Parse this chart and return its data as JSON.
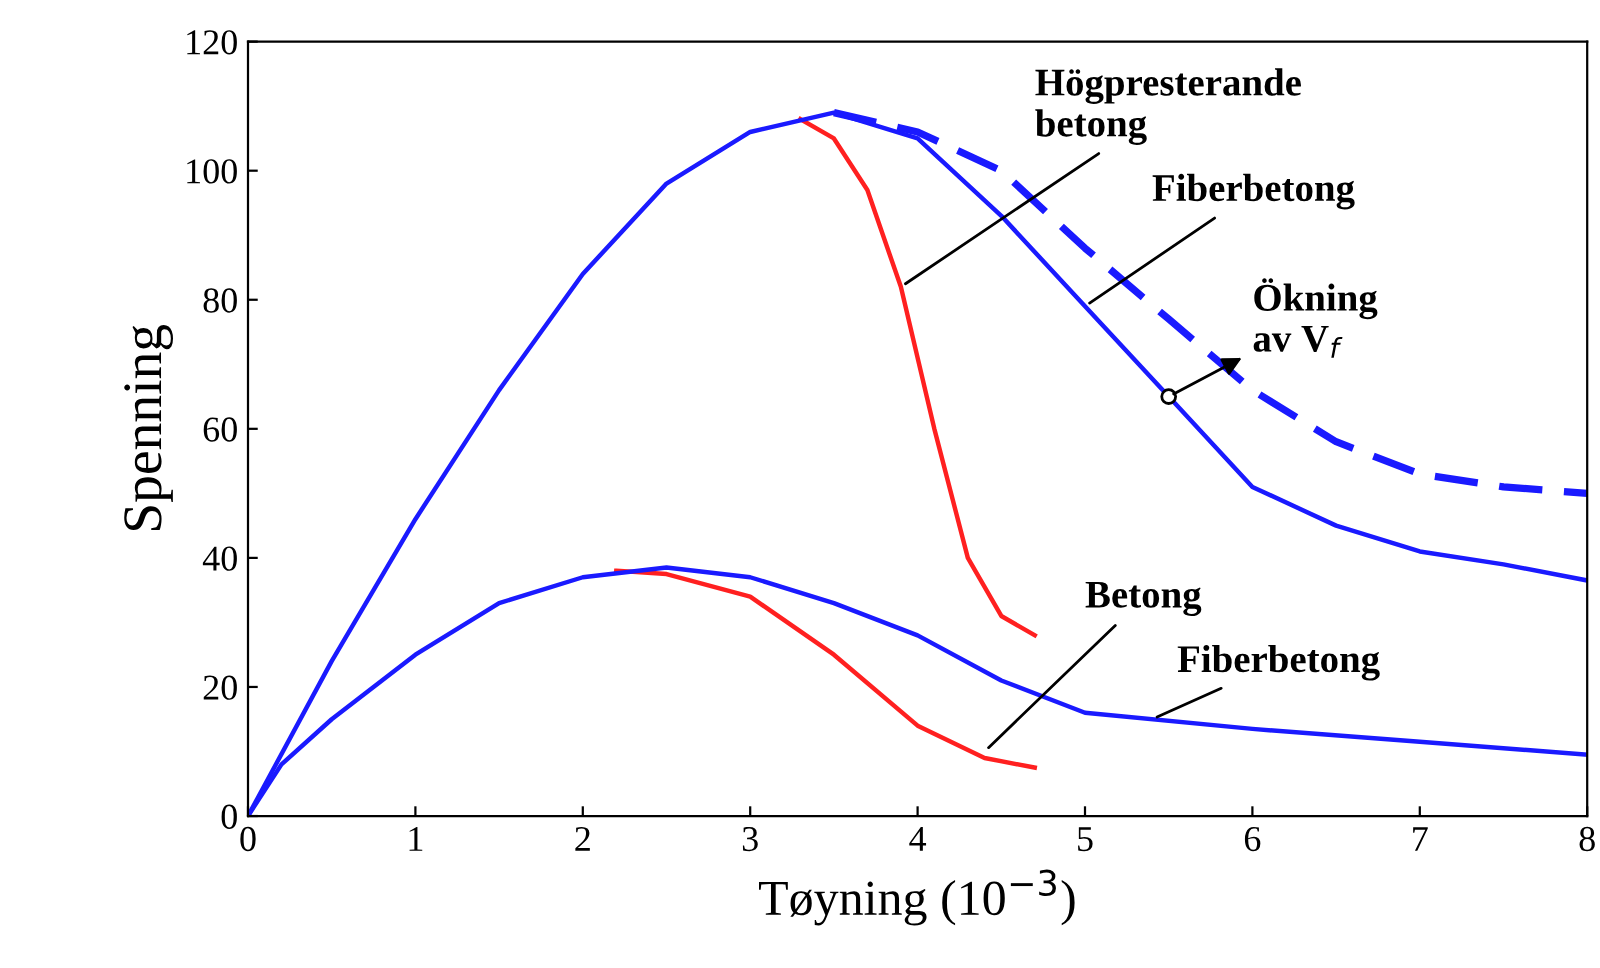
{
  "chart_data": {
    "type": "line",
    "xlabel": "Tøyning (10$^{−3}$)",
    "ylabel": "Spenning",
    "xlim": [
      0,
      8
    ],
    "ylim": [
      0,
      120
    ],
    "xticks": [
      0,
      1,
      2,
      3,
      4,
      5,
      6,
      7,
      8
    ],
    "yticks": [
      0,
      20,
      40,
      60,
      80,
      100,
      120
    ],
    "grid": false,
    "legend": false,
    "marker": "none",
    "series": [
      {
        "color": "#ff2020",
        "line_style": "solid",
        "x": [
          3.3,
          3.5,
          3.7,
          3.9,
          4.1,
          4.3,
          4.5,
          4.7
        ],
        "values": [
          108,
          105,
          97,
          82,
          60,
          40,
          31,
          28
        ]
      },
      {
        "color": "#1a1aff",
        "line_style": "solid",
        "x": [
          0,
          0.5,
          1,
          1.5,
          2,
          2.5,
          3,
          3.5,
          4,
          4.5,
          5,
          5.5,
          6,
          6.5,
          7,
          7.5,
          8
        ],
        "values": [
          0,
          24,
          46,
          66,
          84,
          98,
          106,
          109,
          105,
          93,
          79,
          65,
          51,
          45,
          41,
          39,
          36.5
        ]
      },
      {
        "color": "#1a1aff",
        "line_style": "dashed",
        "x": [
          3.5,
          4,
          4.5,
          5,
          5.5,
          6,
          6.5,
          7,
          7.5,
          8
        ],
        "values": [
          109,
          106,
          100,
          88,
          77,
          66,
          58,
          53,
          51,
          50
        ]
      },
      {
        "color": "#ff2020",
        "line_style": "solid",
        "x": [
          2.2,
          2.5,
          3,
          3.5,
          4,
          4.4,
          4.7
        ],
        "values": [
          38,
          37.5,
          34,
          25,
          14,
          9,
          7.5
        ]
      },
      {
        "color": "#1a1aff",
        "line_style": "solid",
        "x": [
          0,
          0.2,
          0.5,
          1,
          1.5,
          2,
          2.5,
          3,
          3.5,
          4,
          4.5,
          5,
          6,
          7,
          8
        ],
        "values": [
          0,
          8,
          15,
          25,
          33,
          37,
          38.5,
          37,
          33,
          28,
          21,
          16,
          13.5,
          11.5,
          9.5
        ]
      }
    ],
    "annotations": [
      {
        "text": "Högpresterande\nbetong",
        "x": 3.9,
        "y": 82
      },
      {
        "text": "Fiberbetong",
        "x": 5,
        "y": 79
      },
      {
        "text": "Ökning\nav V$_{f}$",
        "x": 5.5,
        "y": 65
      },
      {
        "text": "Betong",
        "x": 4.4,
        "y": 10
      },
      {
        "text": "Fiberbetong",
        "x": 5.4,
        "y": 15
      }
    ]
  }
}
